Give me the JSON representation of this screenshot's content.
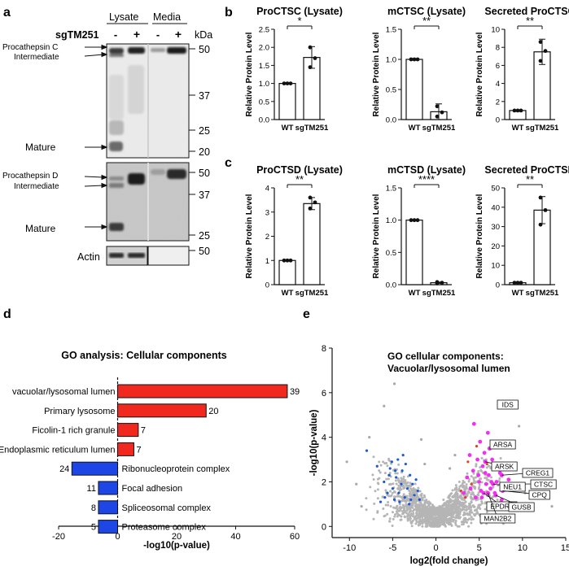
{
  "panel_labels": {
    "a": "a",
    "b": "b",
    "c": "c",
    "d": "d",
    "e": "e"
  },
  "western_blot": {
    "lysate_label": "Lysate",
    "media_label": "Media",
    "condition_label": "sgTM251",
    "lane_marks": [
      "-",
      "+",
      "-",
      "+"
    ],
    "kda_label": "kDa",
    "blot1": {
      "markers": [
        "50",
        "37",
        "25",
        "20"
      ],
      "bands": [
        "Procathepsin C",
        "Intermediate",
        "Mature"
      ]
    },
    "blot2": {
      "markers": [
        "50",
        "37",
        "25"
      ],
      "bands": [
        "Procathepsin D",
        "Intermediate",
        "Mature"
      ]
    },
    "blot3": {
      "markers": [
        "50"
      ],
      "bands": [
        "Actin"
      ]
    }
  },
  "colors": {
    "bar_up": "#f0281e",
    "bar_down": "#1e46e6",
    "magenta": "#f22ef0",
    "blue_pts": "#1d59d6",
    "gray_pts": "#b5b5b5"
  },
  "chart_data": [
    {
      "type": "bar",
      "title": "ProCTSC (Lysate)",
      "ylabel": "Relative Protein Level",
      "categories": [
        "WT",
        "sgTM251"
      ],
      "values": [
        1.0,
        1.72
      ],
      "errors": [
        0.0,
        0.3
      ],
      "points": [
        [
          1.0,
          1.0,
          1.0
        ],
        [
          1.45,
          1.7,
          2.0
        ]
      ],
      "ylim": [
        0,
        2.5
      ],
      "yticks": [
        "0.0",
        "0.5",
        "1.0",
        "1.5",
        "2.0",
        "2.5"
      ],
      "significance": "*"
    },
    {
      "type": "bar",
      "title": "mCTSC (Lysate)",
      "ylabel": "Relative Protein Level",
      "categories": [
        "WT",
        "sgTM251"
      ],
      "values": [
        1.0,
        0.13
      ],
      "errors": [
        0.0,
        0.13
      ],
      "points": [
        [
          1.0,
          1.0,
          1.0
        ],
        [
          0.05,
          0.12,
          0.22
        ]
      ],
      "ylim": [
        0,
        1.5
      ],
      "yticks": [
        "0.0",
        "0.5",
        "1.0",
        "1.5"
      ],
      "significance": "**"
    },
    {
      "type": "bar",
      "title": "Secreted ProCTSC",
      "ylabel": "Relative Protein Level",
      "categories": [
        "WT",
        "sgTM251"
      ],
      "values": [
        1.0,
        7.5
      ],
      "errors": [
        0.0,
        1.4
      ],
      "points": [
        [
          1.0,
          1.0,
          1.0
        ],
        [
          6.5,
          7.6,
          8.6
        ]
      ],
      "ylim": [
        0,
        10
      ],
      "yticks": [
        "0",
        "2",
        "4",
        "6",
        "8",
        "10"
      ],
      "significance": "**"
    },
    {
      "type": "bar",
      "title": "ProCTSD (Lysate)",
      "ylabel": "Relative Protein Level",
      "categories": [
        "WT",
        "sgTM251"
      ],
      "values": [
        1.0,
        3.35
      ],
      "errors": [
        0.0,
        0.25
      ],
      "points": [
        [
          1.0,
          1.0,
          1.0
        ],
        [
          3.15,
          3.4,
          3.6
        ]
      ],
      "ylim": [
        0,
        4
      ],
      "yticks": [
        "0",
        "1",
        "2",
        "3",
        "4"
      ],
      "significance": "**"
    },
    {
      "type": "bar",
      "title": "mCTSD (Lysate)",
      "ylabel": "Relative Protein Level",
      "categories": [
        "WT",
        "sgTM251"
      ],
      "values": [
        1.0,
        0.03
      ],
      "errors": [
        0.0,
        0.01
      ],
      "points": [
        [
          1.0,
          1.0,
          1.0
        ],
        [
          0.02,
          0.03,
          0.04
        ]
      ],
      "ylim": [
        0,
        1.5
      ],
      "yticks": [
        "0.0",
        "0.5",
        "1.0",
        "1.5"
      ],
      "significance": "****"
    },
    {
      "type": "bar",
      "title": "Secreted ProCTSD",
      "ylabel": "Relative Protein Level",
      "categories": [
        "WT",
        "sgTM251"
      ],
      "values": [
        1.0,
        38.5
      ],
      "errors": [
        0.0,
        7.0
      ],
      "points": [
        [
          1.0,
          1.0,
          1.0
        ],
        [
          31.0,
          38.5,
          45.0
        ]
      ],
      "ylim": [
        0,
        50
      ],
      "yticks": [
        "0",
        "10",
        "20",
        "30",
        "40",
        "50"
      ],
      "significance": "**"
    },
    {
      "type": "bar",
      "orientation": "horizontal",
      "title": "GO analysis: Cellular components",
      "xlabel": "-log10(p-value)",
      "xlim": [
        -20,
        60
      ],
      "xticks": [
        "-20",
        "0",
        "20",
        "40",
        "60"
      ],
      "categories": [
        "vacuolar/lysosomal lumen",
        "Primary lysosome",
        "Ficolin-1 rich granule",
        "Endoplasmic reticulum lumen",
        "Ribonucleoprotein complex",
        "Focal adhesion",
        "Spliceosomal complex",
        "Proteasome complex"
      ],
      "values": [
        57.5,
        30,
        7,
        5.5,
        -15.5,
        -6.5,
        -6.5,
        -6.5
      ],
      "counts": [
        "39",
        "20",
        "7",
        "7",
        "24",
        "11",
        "8",
        "5"
      ]
    },
    {
      "type": "scatter",
      "title": "GO cellular components:",
      "subtitle": "Vacuolar/lysosomal lumen",
      "xlabel": "log2(fold change)",
      "ylabel": "-log10(p-value)",
      "xlim": [
        -12,
        15
      ],
      "ylim": [
        -0.5,
        8
      ],
      "xticks": [
        "-10",
        "-5",
        "0",
        "5",
        "10",
        "15"
      ],
      "yticks": [
        "0",
        "2",
        "4",
        "6",
        "8"
      ],
      "labeled_points": [
        {
          "name": "IDS",
          "x": 8.0,
          "y": 5.4
        },
        {
          "name": "ARSA",
          "x": 6.2,
          "y": 3.5
        },
        {
          "name": "ARSK",
          "x": 5.7,
          "y": 2.9
        },
        {
          "name": "CREG1",
          "x": 7.6,
          "y": 2.3
        },
        {
          "name": "CTSC",
          "x": 8.2,
          "y": 1.9
        },
        {
          "name": "NEU1",
          "x": 6.6,
          "y": 1.9
        },
        {
          "name": "CPQ",
          "x": 7.7,
          "y": 1.6
        },
        {
          "name": "EPDR1",
          "x": 5.5,
          "y": 1.5
        },
        {
          "name": "GUSB",
          "x": 6.9,
          "y": 1.4
        },
        {
          "name": "MAN2B2",
          "x": 6.0,
          "y": 1.5
        }
      ],
      "magenta_points": [
        [
          3.2,
          1.5
        ],
        [
          3.6,
          2.2
        ],
        [
          4.0,
          1.7
        ],
        [
          4.3,
          2.5
        ],
        [
          4.6,
          1.3
        ],
        [
          4.8,
          3.0
        ],
        [
          5.0,
          2.0
        ],
        [
          5.2,
          1.6
        ],
        [
          5.4,
          2.7
        ],
        [
          5.6,
          3.3
        ],
        [
          5.8,
          1.9
        ],
        [
          6.1,
          2.3
        ],
        [
          6.3,
          1.7
        ],
        [
          6.5,
          3.0
        ],
        [
          6.7,
          2.6
        ],
        [
          7.0,
          2.0
        ],
        [
          7.2,
          3.6
        ],
        [
          7.4,
          2.4
        ],
        [
          7.9,
          2.6
        ],
        [
          8.4,
          2.1
        ],
        [
          5.1,
          3.8
        ],
        [
          6.0,
          4.2
        ],
        [
          4.4,
          4.6
        ],
        [
          3.9,
          3.2
        ],
        [
          6.8,
          1.5
        ],
        [
          7.6,
          1.2
        ],
        [
          5.3,
          1.3
        ],
        [
          4.9,
          2.3
        ],
        [
          6.4,
          2.0
        ],
        [
          5.7,
          2.4
        ]
      ],
      "red_points": [
        [
          3.4,
          1.3
        ],
        [
          4.1,
          1.9
        ],
        [
          2.9,
          1.6
        ],
        [
          5.9,
          2.8
        ],
        [
          4.7,
          3.6
        ],
        [
          3.7,
          2.9
        ]
      ],
      "blue_points": [
        [
          -3.6,
          1.3
        ],
        [
          -4.0,
          1.9
        ],
        [
          -4.3,
          1.5
        ],
        [
          -4.6,
          2.2
        ],
        [
          -5.0,
          1.7
        ],
        [
          -5.3,
          2.6
        ],
        [
          -2.9,
          1.2
        ],
        [
          -3.3,
          1.7
        ],
        [
          -3.9,
          2.5
        ],
        [
          -4.8,
          1.2
        ],
        [
          -5.6,
          1.5
        ],
        [
          -6.0,
          2.0
        ],
        [
          -2.7,
          1.9
        ],
        [
          -3.0,
          2.3
        ],
        [
          -4.4,
          3.0
        ],
        [
          -5.1,
          2.9
        ],
        [
          -2.5,
          1.4
        ],
        [
          -3.8,
          3.2
        ],
        [
          -6.4,
          1.1
        ],
        [
          -2.3,
          2.1
        ],
        [
          -3.5,
          2.8
        ],
        [
          -4.2,
          1.1
        ],
        [
          -5.4,
          2.3
        ],
        [
          -6.8,
          2.7
        ],
        [
          -1.9,
          1.2
        ],
        [
          -2.1,
          1.6
        ],
        [
          -3.1,
          1.0
        ],
        [
          -4.7,
          2.5
        ],
        [
          -8.0,
          3.4
        ],
        [
          -5.9,
          1.3
        ]
      ],
      "gray_outliers": [
        [
          -4.8,
          6.4
        ],
        [
          -6.0,
          5.4
        ],
        [
          -7.7,
          4.0
        ],
        [
          -10.3,
          2.9
        ],
        [
          -9.2,
          1.9
        ],
        [
          -8.6,
          0.9
        ],
        [
          9.6,
          4.5
        ],
        [
          11.7,
          2.3
        ],
        [
          12.2,
          1.8
        ],
        [
          13.4,
          0.9
        ],
        [
          -1.7,
          3.9
        ],
        [
          -1.3,
          2.8
        ],
        [
          2.2,
          3.2
        ],
        [
          1.6,
          2.6
        ],
        [
          10.3,
          1.5
        ]
      ]
    }
  ]
}
